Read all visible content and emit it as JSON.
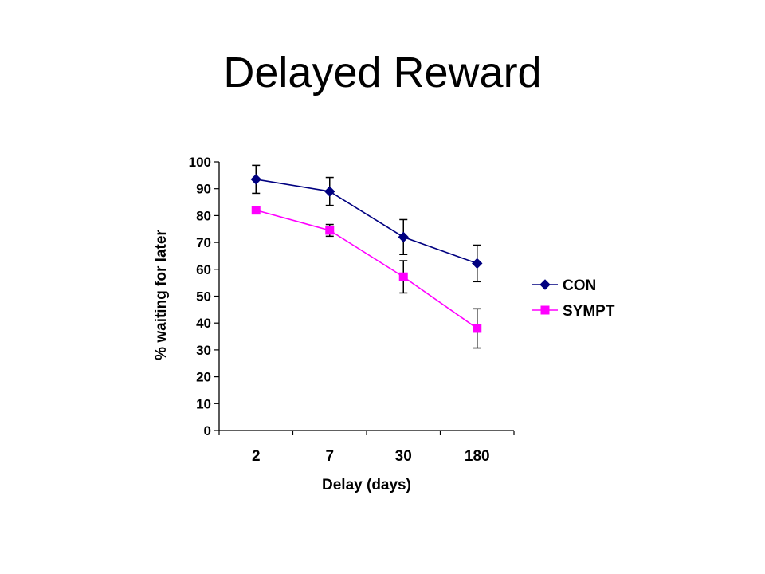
{
  "slide": {
    "title": "Delayed Reward"
  },
  "chart_data": {
    "type": "line",
    "title": "",
    "xlabel": "Delay (days)",
    "ylabel": "% waiting for later",
    "categories": [
      "2",
      "7",
      "30",
      "180"
    ],
    "ylim": [
      0,
      100
    ],
    "yticks": [
      0,
      10,
      20,
      30,
      40,
      50,
      60,
      70,
      80,
      90,
      100
    ],
    "grid": false,
    "legend_position": "right",
    "series": [
      {
        "name": "CON",
        "color": "#000080",
        "marker": "diamond",
        "values": [
          93.5,
          89,
          72,
          62.2
        ],
        "error": [
          5.2,
          5.2,
          6.5,
          6.8
        ]
      },
      {
        "name": "SYMPT",
        "color": "#ff00ff",
        "marker": "square",
        "values": [
          82,
          74.5,
          57.2,
          38
        ],
        "error": [
          0,
          2.2,
          6,
          7.3
        ]
      }
    ]
  }
}
